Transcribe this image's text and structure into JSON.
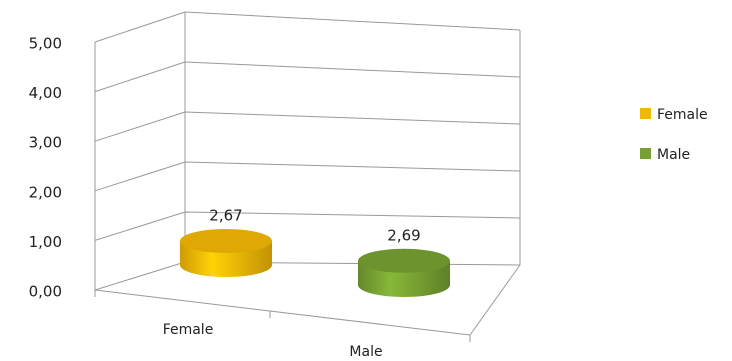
{
  "chart_data": {
    "type": "bar3d",
    "categories": [
      "Female",
      "Male"
    ],
    "series": [
      {
        "name": "Female",
        "color": "#f2b705",
        "values": [
          2.67,
          null
        ],
        "value_labels": [
          "2,67",
          null
        ]
      },
      {
        "name": "Male",
        "color": "#76a032",
        "values": [
          null,
          2.69
        ],
        "value_labels": [
          null,
          "2,69"
        ]
      }
    ],
    "ylim": [
      0,
      5
    ],
    "yticks": [
      {
        "value": 0,
        "label": "0,00"
      },
      {
        "value": 1,
        "label": "1,00"
      },
      {
        "value": 2,
        "label": "2,00"
      },
      {
        "value": 3,
        "label": "3,00"
      },
      {
        "value": 4,
        "label": "4,00"
      },
      {
        "value": 5,
        "label": "5,00"
      }
    ],
    "grid": true,
    "legend": "right"
  }
}
